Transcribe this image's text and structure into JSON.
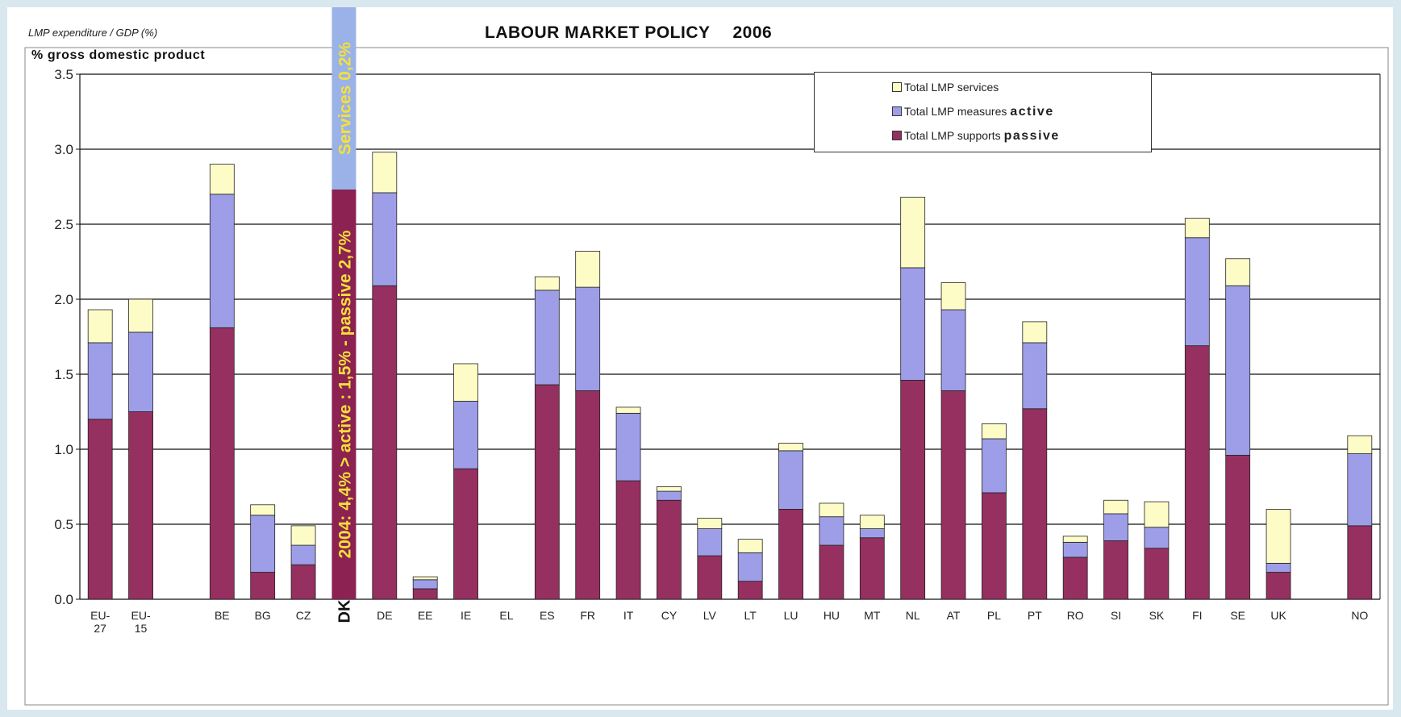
{
  "header": {
    "subtitle": "LMP expenditure / GDP (%)",
    "title": "LABOUR MARKET POLICY",
    "year": "2006"
  },
  "colors": {
    "passive": "#963060",
    "active": "#9e9ee8",
    "services": "#fdfcc6",
    "dk_banner_dark": "#8b2252",
    "dk_banner_light": "#9ab2e8",
    "dk_text": "#f5e038"
  },
  "legend": {
    "services": "Total LMP services",
    "active_prefix": "Total LMP measures",
    "active_em": "active",
    "passive_prefix": "Total LMP supports",
    "passive_em": "passive"
  },
  "dk_banner": {
    "label": "DK",
    "main_text": "2004: 4,4% > active : 1,5% - passive 2,7%",
    "services_text": "Services 0,2%"
  },
  "chart_data": {
    "type": "bar",
    "stacked": true,
    "ylabel": "% gross domestic product",
    "ylim": [
      0,
      3.5
    ],
    "yticks": [
      "0.0",
      "0.5",
      "1.0",
      "1.5",
      "2.0",
      "2.5",
      "3.0",
      "3.5"
    ],
    "grid": true,
    "legend_position": "top-right",
    "categories": [
      "EU-27",
      "EU-15",
      "",
      "BE",
      "BG",
      "CZ",
      "DK",
      "DE",
      "EE",
      "IE",
      "EL",
      "ES",
      "FR",
      "IT",
      "CY",
      "LV",
      "LT",
      "LU",
      "HU",
      "MT",
      "NL",
      "AT",
      "PL",
      "PT",
      "RO",
      "SI",
      "SK",
      "FI",
      "SE",
      "UK",
      "",
      "NO"
    ],
    "category_labels": [
      [
        "EU-",
        "27"
      ],
      [
        "EU-",
        "15"
      ],
      [
        ""
      ],
      [
        "BE"
      ],
      [
        "BG"
      ],
      [
        "CZ"
      ],
      [
        "DK"
      ],
      [
        "DE"
      ],
      [
        "EE"
      ],
      [
        "IE"
      ],
      [
        "EL"
      ],
      [
        "ES"
      ],
      [
        "FR"
      ],
      [
        "IT"
      ],
      [
        "CY"
      ],
      [
        "LV"
      ],
      [
        "LT"
      ],
      [
        "LU"
      ],
      [
        "HU"
      ],
      [
        "MT"
      ],
      [
        "NL"
      ],
      [
        "AT"
      ],
      [
        "PL"
      ],
      [
        "PT"
      ],
      [
        "RO"
      ],
      [
        "SI"
      ],
      [
        "SK"
      ],
      [
        "FI"
      ],
      [
        "SE"
      ],
      [
        "UK"
      ],
      [
        ""
      ],
      [
        "NO"
      ]
    ],
    "series": [
      {
        "name": "Total LMP supports passive",
        "values": [
          1.2,
          1.25,
          null,
          1.81,
          0.18,
          0.23,
          null,
          2.09,
          0.07,
          0.87,
          null,
          1.43,
          1.39,
          0.79,
          0.66,
          0.29,
          0.12,
          0.6,
          0.36,
          0.41,
          1.46,
          1.39,
          0.71,
          1.27,
          0.28,
          0.39,
          0.34,
          1.69,
          0.96,
          0.18,
          null,
          0.49
        ]
      },
      {
        "name": "Total LMP measures active",
        "values": [
          0.51,
          0.53,
          null,
          0.89,
          0.38,
          0.13,
          null,
          0.62,
          0.06,
          0.45,
          null,
          0.63,
          0.69,
          0.45,
          0.06,
          0.18,
          0.19,
          0.39,
          0.19,
          0.06,
          0.75,
          0.54,
          0.36,
          0.44,
          0.1,
          0.18,
          0.14,
          0.72,
          1.13,
          0.06,
          null,
          0.48
        ]
      },
      {
        "name": "Total LMP services",
        "values": [
          0.22,
          0.22,
          null,
          0.2,
          0.07,
          0.13,
          null,
          0.27,
          0.02,
          0.25,
          null,
          0.09,
          0.24,
          0.04,
          0.03,
          0.07,
          0.09,
          0.05,
          0.09,
          0.09,
          0.47,
          0.18,
          0.1,
          0.14,
          0.04,
          0.09,
          0.17,
          0.13,
          0.18,
          0.36,
          null,
          0.12
        ]
      }
    ]
  }
}
